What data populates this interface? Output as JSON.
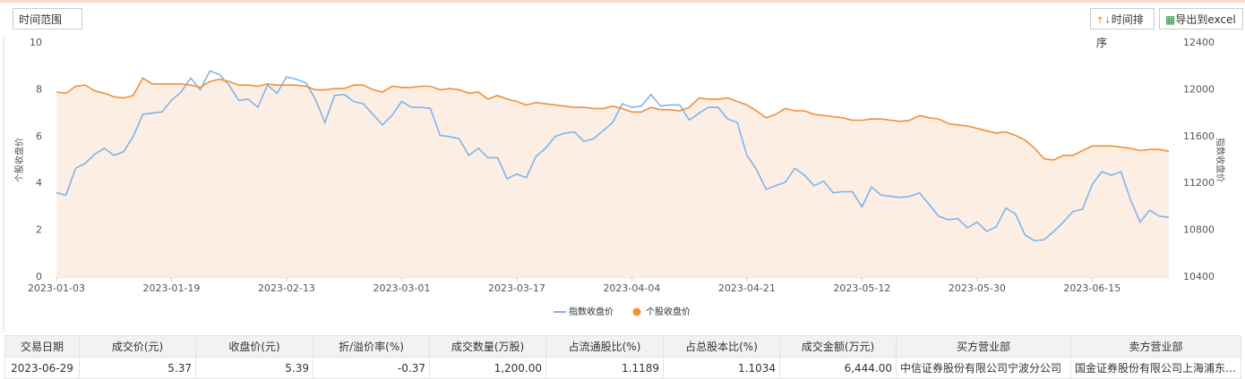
{
  "toolbar": {
    "time_range": "时间范围",
    "sort_button": "时间排序",
    "export_button": "导出到excel"
  },
  "chart_data": {
    "type": "line",
    "categories": [
      "2023-01-03",
      null,
      null,
      null,
      null,
      null,
      null,
      null,
      null,
      null,
      null,
      null,
      "2023-01-19",
      null,
      null,
      null,
      null,
      null,
      null,
      null,
      null,
      null,
      null,
      null,
      "2023-02-13",
      null,
      null,
      null,
      null,
      null,
      null,
      null,
      null,
      null,
      null,
      null,
      "2023-03-01",
      null,
      null,
      null,
      null,
      null,
      null,
      null,
      null,
      null,
      null,
      null,
      "2023-03-17",
      null,
      null,
      null,
      null,
      null,
      null,
      null,
      null,
      null,
      null,
      null,
      "2023-04-04",
      null,
      null,
      null,
      null,
      null,
      null,
      null,
      null,
      null,
      null,
      null,
      "2023-04-21",
      null,
      null,
      null,
      null,
      null,
      null,
      null,
      null,
      null,
      null,
      null,
      "2023-05-12",
      null,
      null,
      null,
      null,
      null,
      null,
      null,
      null,
      null,
      null,
      null,
      "2023-05-30",
      null,
      null,
      null,
      null,
      null,
      null,
      null,
      null,
      null,
      null,
      null,
      "2023-06-15",
      null,
      null,
      null,
      null,
      null,
      null,
      null,
      null
    ],
    "ylabel": "个股收盘价",
    "y2label": "指数收盘价",
    "ylim": [
      0,
      10
    ],
    "yticks": [
      0,
      2,
      4,
      6,
      8,
      10
    ],
    "y2lim": [
      10400,
      12400
    ],
    "y2ticks": [
      10400,
      10800,
      11200,
      11600,
      12000,
      12400
    ],
    "legend": "bottom",
    "series": [
      {
        "name": "指数收盘价",
        "color": "#7cb5ec",
        "axis": "y2",
        "area": false,
        "values": [
          11120,
          11100,
          11330,
          11370,
          11450,
          11500,
          11440,
          11470,
          11600,
          11790,
          11800,
          11810,
          11910,
          11980,
          12100,
          12000,
          12160,
          12130,
          12040,
          11910,
          11920,
          11850,
          12040,
          11970,
          12110,
          12090,
          12060,
          11920,
          11720,
          11950,
          11960,
          11900,
          11880,
          11790,
          11700,
          11780,
          11900,
          11850,
          11850,
          11840,
          11610,
          11600,
          11580,
          11440,
          11500,
          11420,
          11420,
          11240,
          11280,
          11250,
          11430,
          11500,
          11600,
          11630,
          11640,
          11560,
          11580,
          11650,
          11720,
          11880,
          11850,
          11860,
          11960,
          11860,
          11870,
          11870,
          11740,
          11800,
          11850,
          11850,
          11750,
          11720,
          11440,
          11320,
          11150,
          11180,
          11210,
          11330,
          11270,
          11180,
          11220,
          11120,
          11130,
          11130,
          11000,
          11170,
          11100,
          11090,
          11080,
          11090,
          11120,
          11020,
          10920,
          10890,
          10900,
          10820,
          10870,
          10790,
          10830,
          10990,
          10940,
          10760,
          10710,
          10720,
          10790,
          10870,
          10960,
          10980,
          11190,
          11300,
          11270,
          11300,
          11060,
          10870,
          10970,
          10920,
          10910
        ]
      },
      {
        "name": "个股收盘价",
        "color": "#f28f3b",
        "axis": "y",
        "area": true,
        "area_color": "#fdeee3",
        "values": [
          7.9,
          7.85,
          8.15,
          8.2,
          7.95,
          7.85,
          7.7,
          7.65,
          7.75,
          8.5,
          8.25,
          8.25,
          8.25,
          8.25,
          8.2,
          8.1,
          8.35,
          8.45,
          8.35,
          8.2,
          8.2,
          8.15,
          8.25,
          8.2,
          8.2,
          8.2,
          8.15,
          8.0,
          8.0,
          8.05,
          8.05,
          8.2,
          8.2,
          8.0,
          7.9,
          8.15,
          8.1,
          8.1,
          8.15,
          8.15,
          8.0,
          8.05,
          8.0,
          7.85,
          7.9,
          7.6,
          7.75,
          7.6,
          7.5,
          7.35,
          7.45,
          7.4,
          7.35,
          7.3,
          7.25,
          7.25,
          7.2,
          7.2,
          7.3,
          7.2,
          7.05,
          7.05,
          7.25,
          7.15,
          7.15,
          7.1,
          7.25,
          7.65,
          7.6,
          7.6,
          7.65,
          7.5,
          7.35,
          7.1,
          6.8,
          6.95,
          7.2,
          7.1,
          7.1,
          6.95,
          6.9,
          6.85,
          6.8,
          6.7,
          6.7,
          6.75,
          6.75,
          6.7,
          6.65,
          6.7,
          6.9,
          6.8,
          6.75,
          6.55,
          6.5,
          6.45,
          6.35,
          6.25,
          6.15,
          6.2,
          6.05,
          5.85,
          5.5,
          5.05,
          5.0,
          5.2,
          5.2,
          5.4,
          5.6,
          5.6,
          5.6,
          5.55,
          5.5,
          5.4,
          5.45,
          5.45,
          5.37
        ]
      }
    ]
  },
  "table": {
    "headers": [
      "交易日期",
      "成交价(元)",
      "收盘价(元)",
      "折/溢价率(%)",
      "成交数量(万股)",
      "占流通股比(%)",
      "占总股本比(%)",
      "成交金额(万元)",
      "买方营业部",
      "卖方营业部"
    ],
    "rows": [
      [
        "2023-06-29",
        "5.37",
        "5.39",
        "-0.37",
        "1,200.00",
        "1.1189",
        "1.1034",
        "6,444.00",
        "中信证券股份有限公司宁波分公司",
        "国金证券股份有限公司上海浦东…"
      ]
    ]
  }
}
